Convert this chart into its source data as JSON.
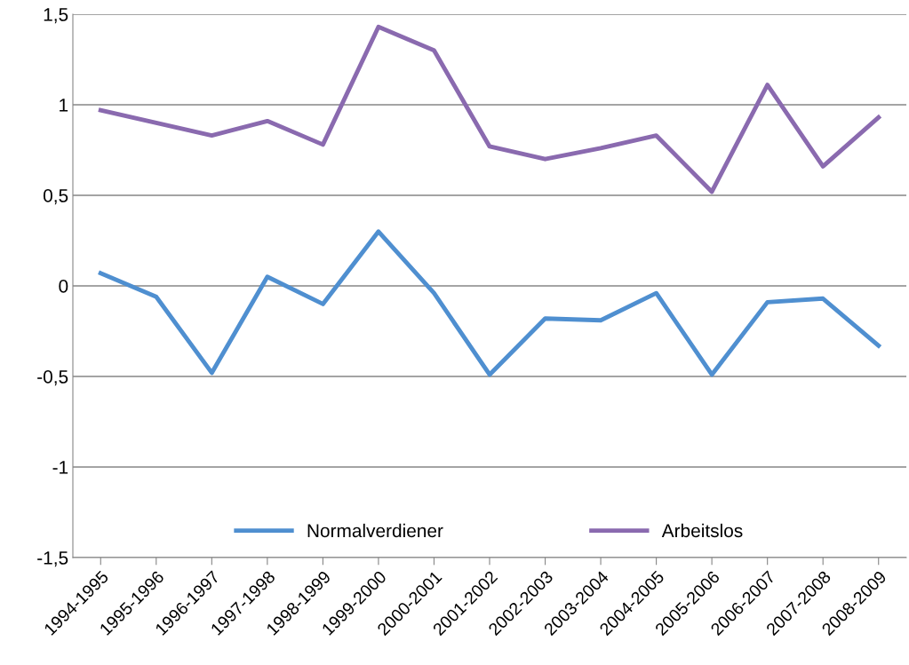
{
  "chart_data": {
    "type": "line",
    "categories": [
      "1994-1995",
      "1995-1996",
      "1996-1997",
      "1997-1998",
      "1998-1999",
      "1999-2000",
      "2000-2001",
      "2001-2002",
      "2002-2003",
      "2003-2004",
      "2004-2005",
      "2005-2006",
      "2006-2007",
      "2007-2008",
      "2008-2009"
    ],
    "series": [
      {
        "name": "Normalverdiener",
        "color": "#4f8fd0",
        "values": [
          0.07,
          -0.06,
          -0.48,
          0.05,
          -0.1,
          0.3,
          -0.04,
          -0.49,
          -0.18,
          -0.19,
          -0.04,
          -0.49,
          -0.09,
          -0.07,
          -0.33
        ]
      },
      {
        "name": "Arbeitslos",
        "color": "#8a6aaf",
        "values": [
          0.97,
          0.9,
          0.83,
          0.91,
          0.78,
          1.43,
          1.3,
          0.77,
          0.7,
          0.76,
          0.83,
          0.52,
          1.11,
          0.66,
          0.93
        ]
      }
    ],
    "ylim": [
      -1.5,
      1.5
    ],
    "yticks": [
      {
        "value": -1.5,
        "label": "-1,5"
      },
      -1,
      {
        "value": -0.5,
        "label": "-0,5"
      },
      0,
      {
        "value": 0.5,
        "label": "0,5"
      },
      1,
      {
        "value": 1.5,
        "label": "1,5"
      }
    ],
    "grid": "y",
    "legend": "bottom",
    "marker": "none",
    "line_style": "solid"
  }
}
